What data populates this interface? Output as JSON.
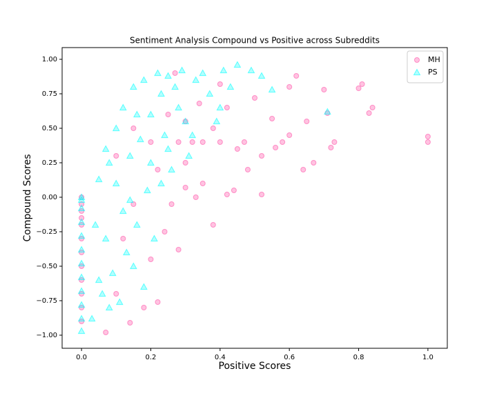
{
  "chart_data": {
    "type": "scatter",
    "title": "Sentiment Analysis Compound vs Positive across Subreddits",
    "x_label": "Positive Scores",
    "y_label": "Compound Scores",
    "xlim": [
      -0.056,
      1.056
    ],
    "ylim": [
      -1.095,
      1.085
    ],
    "xticks": [
      {
        "value": 0,
        "label": "0.0"
      },
      {
        "value": 0.2,
        "label": "0.2"
      },
      {
        "value": 0.4,
        "label": "0.4"
      },
      {
        "value": 0.6,
        "label": "0.6"
      },
      {
        "value": 0.8,
        "label": "0.8"
      },
      {
        "value": 1,
        "label": "1.0"
      }
    ],
    "yticks": [
      {
        "value": -1,
        "label": "−1.00"
      },
      {
        "value": -0.75,
        "label": "−0.75"
      },
      {
        "value": -0.5,
        "label": "−0.50"
      },
      {
        "value": -0.25,
        "label": "−0.25"
      },
      {
        "value": 0,
        "label": "0.00"
      },
      {
        "value": 0.25,
        "label": "0.25"
      },
      {
        "value": 0.5,
        "label": "0.50"
      },
      {
        "value": 0.75,
        "label": "0.75"
      },
      {
        "value": 1,
        "label": "1.00"
      }
    ],
    "legend": "upper right",
    "series": [
      {
        "name": "MH",
        "color": "#ff69b4",
        "marker": "circle",
        "x": [
          0,
          0,
          0,
          0,
          0,
          0,
          0,
          0,
          0,
          0,
          0,
          0,
          0.07,
          0.1,
          0.12,
          0.14,
          0.15,
          0.18,
          0.2,
          0.22,
          0.24,
          0.26,
          0.28,
          0.3,
          0.33,
          0.38,
          0.42,
          0.52,
          0.1,
          0.15,
          0.2,
          0.22,
          0.25,
          0.28,
          0.3,
          0.32,
          0.35,
          0.38,
          0.4,
          0.42,
          0.45,
          0.47,
          0.5,
          0.52,
          0.55,
          0.56,
          0.58,
          0.6,
          0.62,
          0.64,
          0.65,
          0.67,
          0.7,
          0.72,
          0.73,
          0.8,
          0.81,
          0.83,
          0.84,
          1.0,
          1.0,
          0.44,
          0.35,
          0.3,
          0.4,
          0.34,
          0.27,
          0.48,
          0.6,
          0.71
        ],
        "values": [
          0,
          -0.1,
          -0.2,
          -0.3,
          -0.4,
          -0.5,
          -0.6,
          -0.7,
          -0.8,
          -0.9,
          -0.05,
          -0.15,
          -0.98,
          -0.7,
          -0.3,
          -0.91,
          -0.05,
          -0.8,
          -0.45,
          -0.76,
          -0.25,
          -0.05,
          -0.38,
          0.07,
          0.0,
          -0.2,
          0.02,
          0.02,
          0.3,
          0.5,
          0.4,
          0.2,
          0.6,
          0.4,
          0.55,
          0.4,
          0.4,
          0.5,
          0.4,
          0.65,
          0.35,
          0.4,
          0.72,
          0.3,
          0.57,
          0.36,
          0.4,
          0.45,
          0.88,
          0.2,
          0.55,
          0.25,
          0.78,
          0.36,
          0.4,
          0.79,
          0.82,
          0.61,
          0.65,
          0.4,
          0.44,
          0.05,
          0.1,
          0.25,
          0.82,
          0.68,
          0.9,
          0.2,
          0.8,
          0.61
        ]
      },
      {
        "name": "PS",
        "color": "#00ffff",
        "marker": "triangle",
        "x": [
          0,
          0,
          0,
          0,
          0,
          0,
          0,
          0,
          0,
          0,
          0,
          0,
          0.03,
          0.05,
          0.07,
          0.05,
          0.07,
          0.08,
          0.1,
          0.12,
          0.12,
          0.14,
          0.15,
          0.15,
          0.17,
          0.18,
          0.18,
          0.2,
          0.21,
          0.22,
          0.23,
          0.24,
          0.25,
          0.26,
          0.27,
          0.29,
          0.3,
          0.31,
          0.33,
          0.35,
          0.37,
          0.39,
          0.41,
          0.43,
          0.45,
          0.49,
          0.52,
          0.55,
          0.13,
          0.16,
          0.19,
          0.1,
          0.09,
          0.06,
          0.04,
          0.11,
          0.2,
          0.23,
          0.08,
          0.16,
          0.28,
          0.32,
          0.71,
          0.4,
          0.25,
          0.14
        ],
        "values": [
          0,
          -0.08,
          -0.18,
          -0.28,
          -0.38,
          -0.48,
          -0.58,
          -0.68,
          -0.78,
          -0.88,
          -0.97,
          -0.02,
          -0.88,
          -0.6,
          -0.3,
          0.13,
          0.35,
          -0.8,
          0.5,
          0.65,
          -0.1,
          0.3,
          0.8,
          -0.5,
          0.42,
          0.85,
          -0.65,
          0.6,
          -0.3,
          0.9,
          0.75,
          0.45,
          0.88,
          0.2,
          0.8,
          0.92,
          0.55,
          0.3,
          0.85,
          0.9,
          0.75,
          0.55,
          0.92,
          0.8,
          0.96,
          0.92,
          0.88,
          0.78,
          -0.4,
          -0.2,
          0.05,
          0.1,
          -0.55,
          -0.7,
          -0.2,
          -0.76,
          0.25,
          0.1,
          0.25,
          0.6,
          0.65,
          0.45,
          0.62,
          0.65,
          0.35,
          -0.02
        ]
      }
    ]
  }
}
